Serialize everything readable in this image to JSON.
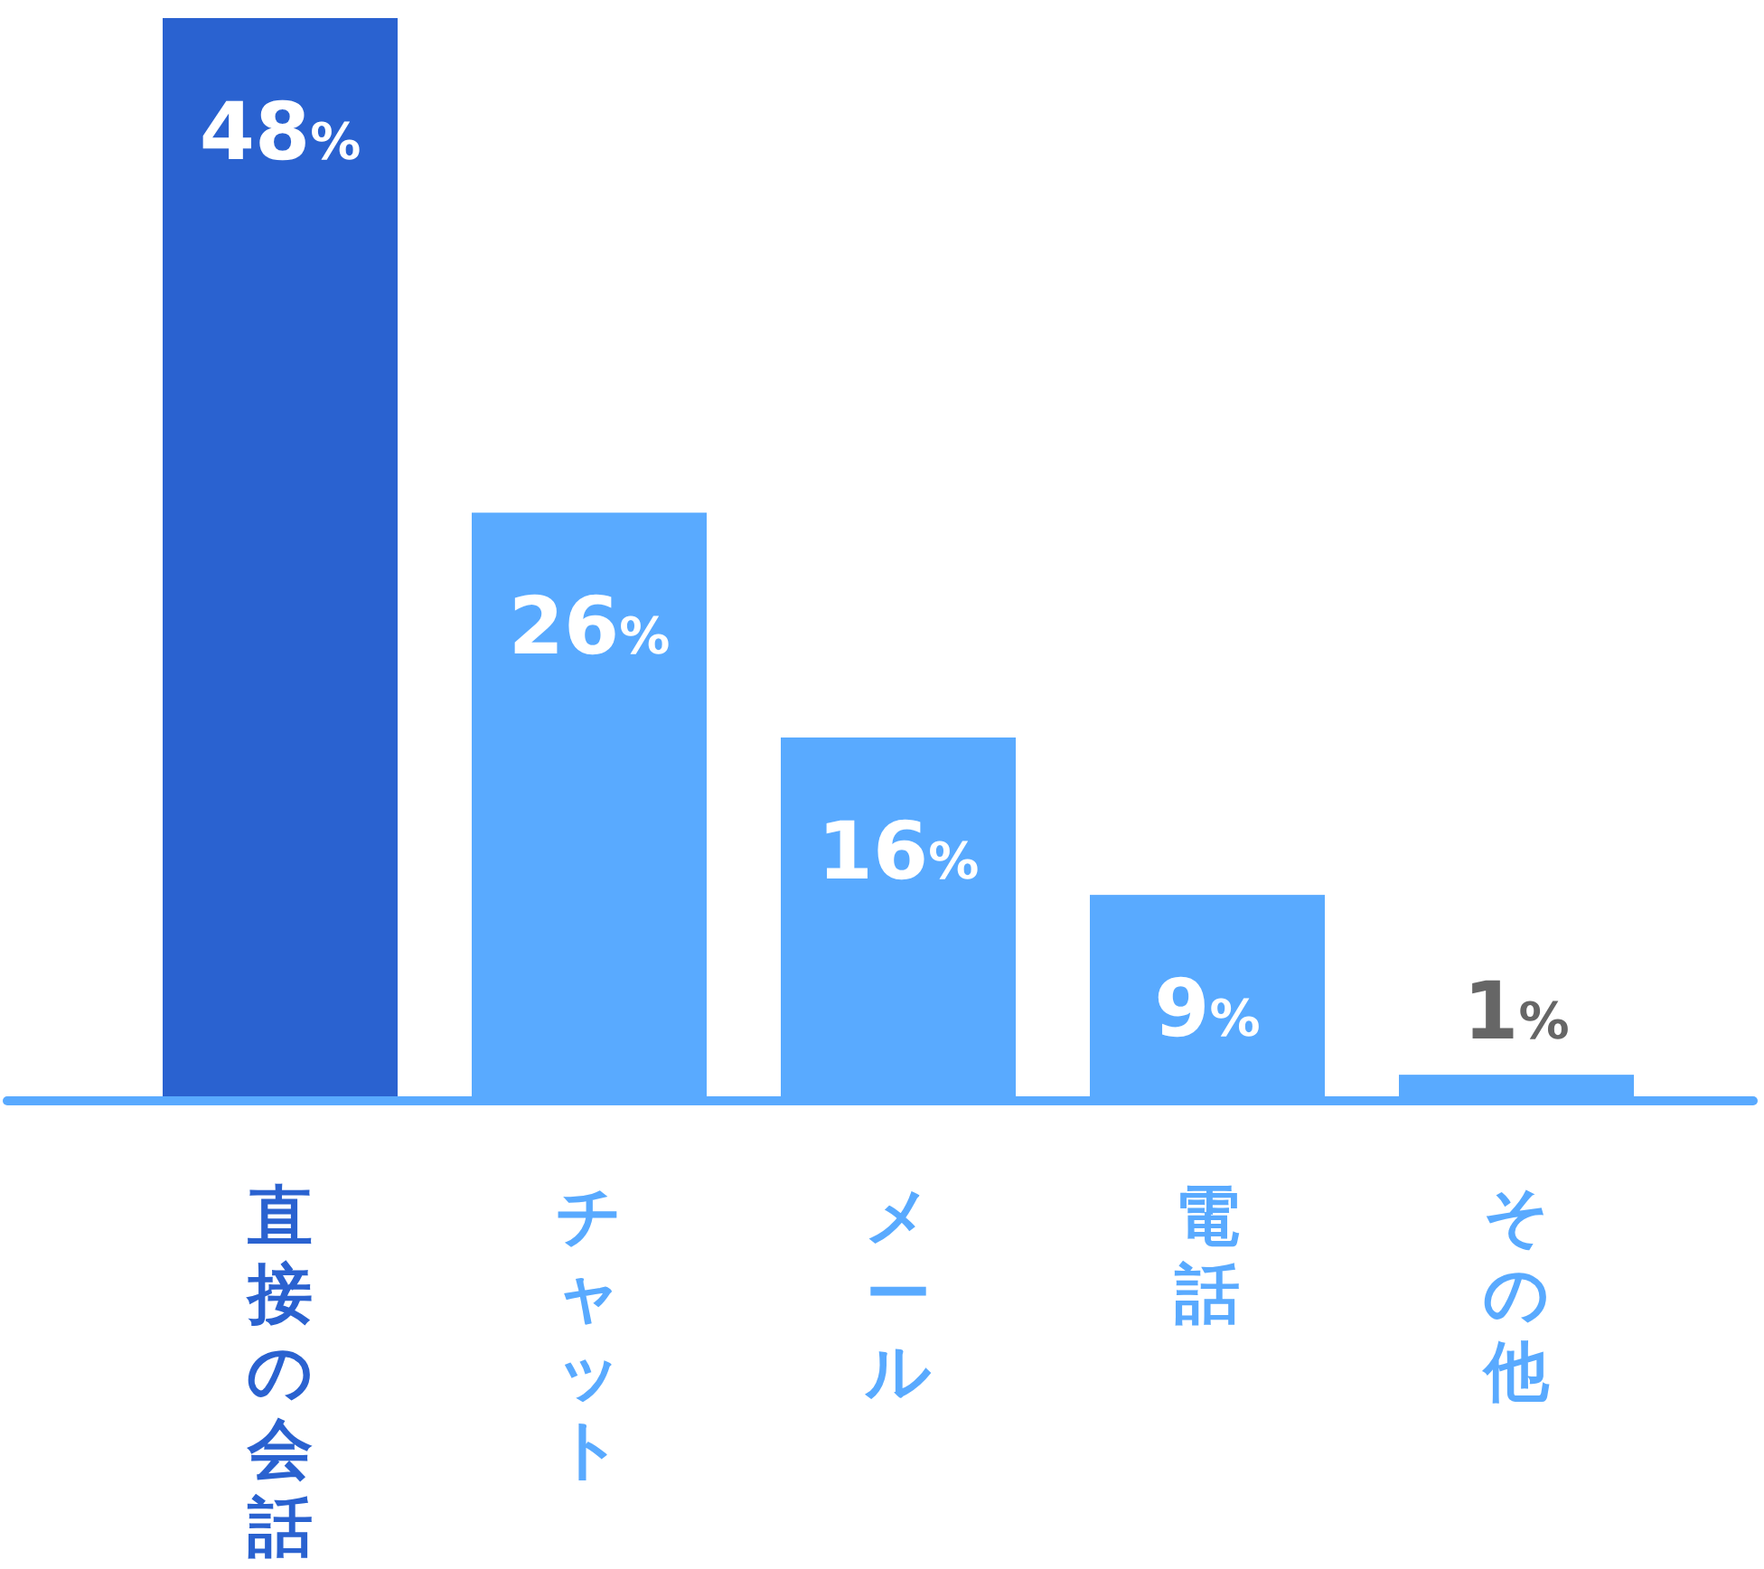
{
  "chart_data": {
    "type": "bar",
    "categories": [
      "直接の会話",
      "チャット",
      "メール",
      "電話",
      "その他"
    ],
    "values": [
      48,
      26,
      16,
      9,
      1
    ],
    "colors": [
      "#2a62d0",
      "#59aaff",
      "#59aaff",
      "#59aaff",
      "#59aaff"
    ],
    "value_labels": [
      "48%",
      "26%",
      "16%",
      "9%",
      "1%"
    ]
  }
}
